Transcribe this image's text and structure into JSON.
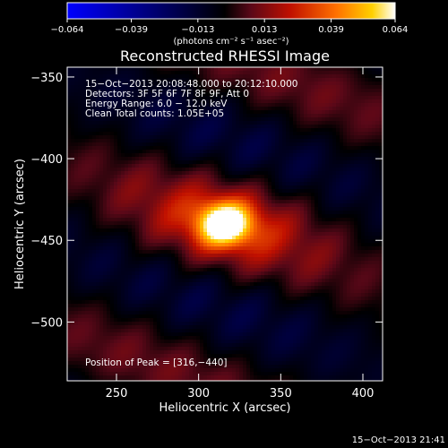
{
  "chart_data": {
    "type": "heatmap",
    "title": "Reconstructed RHESSI Image",
    "xlabel": "Heliocentric X (arcsec)",
    "ylabel": "Heliocentric Y (arcsec)",
    "xlim": [
      220,
      412
    ],
    "ylim": [
      -536,
      -344
    ],
    "x_ticks": [
      250,
      300,
      350,
      400
    ],
    "x_tick_labels": [
      "250",
      "300",
      "350",
      "400"
    ],
    "y_ticks": [
      -350,
      -400,
      -450,
      -500
    ],
    "y_tick_labels": [
      "−350",
      "−400",
      "−450",
      "−500"
    ],
    "colorbar": {
      "range": [
        -0.064,
        0.064
      ],
      "ticks": [
        -0.064,
        -0.039,
        -0.013,
        0.013,
        0.039,
        0.064
      ],
      "tick_labels": [
        "−0.064",
        "−0.039",
        "−0.013",
        "0.013",
        "0.039",
        "0.064"
      ],
      "units": "(photons cm⁻² s⁻¹ asec⁻²)"
    },
    "info_lines": [
      "15−Oct−2013 20:08:48.000 to 20:12:10.000",
      "Detectors: 3F 5F 6F 7F 8F 9F, Att 0",
      "Energy Range: 6.0 − 12.0 keV",
      "Clean     Total counts: 1.05E+05"
    ],
    "peak": {
      "x": 316,
      "y": -440,
      "value": 0.064
    },
    "peak_label": "Position of Peak = [316,−440]"
  },
  "footer": {
    "timestamp": "15−Oct−2013 21:41"
  }
}
